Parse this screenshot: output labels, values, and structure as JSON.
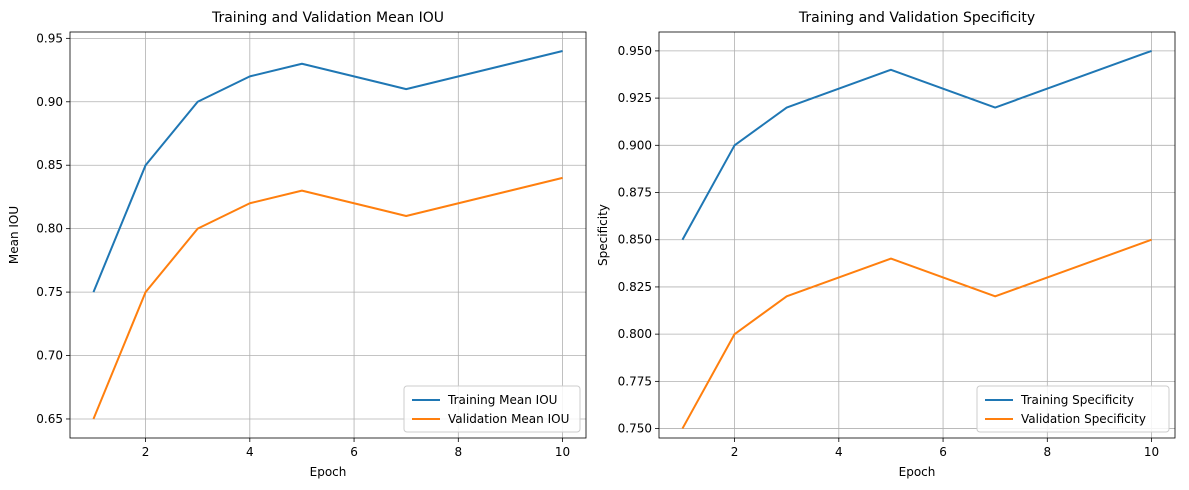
{
  "colors": {
    "training": "#1f77b4",
    "validation": "#ff7f0e"
  },
  "chart_data": [
    {
      "type": "line",
      "title": "Training and Validation Mean IOU",
      "xlabel": "Epoch",
      "ylabel": "Mean IOU",
      "xlim": [
        0.55,
        10.45
      ],
      "ylim": [
        0.635,
        0.955
      ],
      "xticks": [
        2,
        4,
        6,
        8,
        10
      ],
      "yticks": [
        0.65,
        0.7,
        0.75,
        0.8,
        0.85,
        0.9,
        0.95
      ],
      "ytick_labels": [
        "0.65",
        "0.70",
        "0.75",
        "0.80",
        "0.85",
        "0.90",
        "0.95"
      ],
      "grid": true,
      "legend": "lower-right",
      "x": [
        1,
        2,
        3,
        4,
        5,
        7,
        10
      ],
      "series": [
        {
          "name": "Training Mean IOU",
          "values": [
            0.75,
            0.85,
            0.9,
            0.92,
            0.93,
            0.91,
            0.94
          ],
          "color": "#1f77b4"
        },
        {
          "name": "Validation Mean IOU",
          "values": [
            0.65,
            0.75,
            0.8,
            0.82,
            0.83,
            0.81,
            0.84
          ],
          "color": "#ff7f0e"
        }
      ]
    },
    {
      "type": "line",
      "title": "Training and Validation Specificity",
      "xlabel": "Epoch",
      "ylabel": "Specificity",
      "xlim": [
        0.55,
        10.45
      ],
      "ylim": [
        0.745,
        0.96
      ],
      "xticks": [
        2,
        4,
        6,
        8,
        10
      ],
      "yticks": [
        0.75,
        0.775,
        0.8,
        0.825,
        0.85,
        0.875,
        0.9,
        0.925,
        0.95
      ],
      "ytick_labels": [
        "0.750",
        "0.775",
        "0.800",
        "0.825",
        "0.850",
        "0.875",
        "0.900",
        "0.925",
        "0.950"
      ],
      "grid": true,
      "legend": "lower-right",
      "x": [
        1,
        2,
        3,
        5,
        7,
        10
      ],
      "series": [
        {
          "name": "Training Specificity",
          "values": [
            0.85,
            0.9,
            0.92,
            0.94,
            0.92,
            0.95
          ],
          "color": "#1f77b4"
        },
        {
          "name": "Validation Specificity",
          "values": [
            0.75,
            0.8,
            0.82,
            0.84,
            0.82,
            0.85
          ],
          "color": "#ff7f0e"
        }
      ]
    }
  ]
}
